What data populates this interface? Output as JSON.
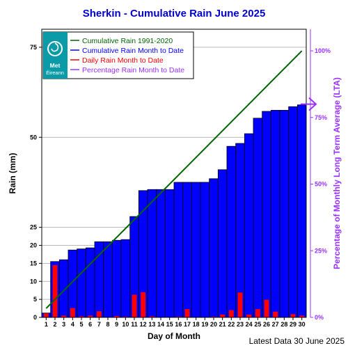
{
  "chart_data": {
    "type": "bar",
    "title": "Sherkin - Cumulative Rain June   2025",
    "xlabel": "Day of Month",
    "ylabel": "Rain (mm)",
    "y2label": "Percentage  of Monthly Long Term Average (LTA)",
    "footer": "Latest Data 30 June 2025",
    "xlim": [
      0.5,
      30.5
    ],
    "ylim": [
      0,
      80
    ],
    "days": [
      1,
      2,
      3,
      4,
      5,
      6,
      7,
      8,
      9,
      10,
      11,
      12,
      13,
      14,
      15,
      16,
      17,
      18,
      19,
      20,
      21,
      22,
      23,
      24,
      25,
      26,
      27,
      28,
      29,
      30
    ],
    "yticks": [
      0,
      5,
      10,
      15,
      20,
      25,
      50,
      75
    ],
    "y2ticks": [
      {
        "label": "0%",
        "value": 0
      },
      {
        "label": "25%",
        "value": 18.5
      },
      {
        "label": "50%",
        "value": 37
      },
      {
        "label": "75%",
        "value": 55.5
      },
      {
        "label": "100%",
        "value": 74
      }
    ],
    "series": [
      {
        "name": "Cumulative Rain 1991-2020",
        "type": "line",
        "color": "#006400",
        "x": [
          1,
          30
        ],
        "values": [
          2.5,
          74
        ]
      },
      {
        "name": "Cumulative Rain Month to Date",
        "type": "bar",
        "color": "#0000ff",
        "values": [
          1.2,
          15.5,
          16,
          18.7,
          19,
          19.3,
          21,
          21,
          21.4,
          21.6,
          28,
          35.2,
          35.5,
          35.5,
          35.5,
          37.5,
          37.5,
          37.5,
          37.5,
          38.5,
          41,
          47.5,
          48.3,
          51,
          55.3,
          57.2,
          57.5,
          57.5,
          58.5,
          59
        ]
      },
      {
        "name": "Daily Rain Month to Date",
        "type": "bar",
        "color": "#ff0000",
        "values": [
          1.1,
          14.5,
          0.5,
          2.6,
          0.3,
          0.5,
          1.7,
          0,
          0.4,
          0.2,
          6.3,
          7,
          0.3,
          0,
          0,
          0.2,
          2.3,
          0,
          0,
          0.2,
          0.8,
          2,
          6.9,
          0.8,
          2.3,
          4.9,
          1.6,
          0,
          0.9,
          0.5
        ]
      },
      {
        "name": "Percentage Rain Month to Date",
        "type": "marker",
        "color": "#9b30ff",
        "value": 59.2,
        "percent": 80
      }
    ],
    "legend": "top-left"
  },
  "legend_badge": {
    "line1": "Met",
    "line2": "Éireann",
    "color": "#0a9aa8"
  }
}
